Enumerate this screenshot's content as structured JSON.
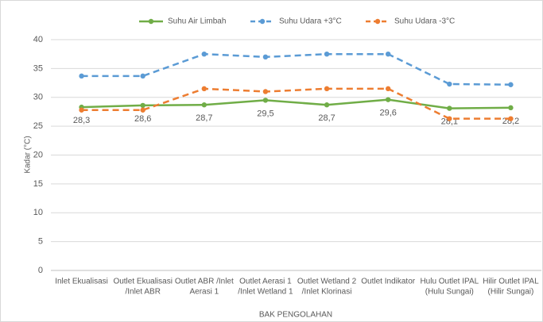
{
  "chart_data": {
    "type": "line",
    "y_label": "Kadar (°C)",
    "x_label": "BAK PENGOLAHAN",
    "categories": [
      [
        "Inlet Ekualisasi"
      ],
      [
        "Outlet Ekualisasi",
        "/Inlet ABR"
      ],
      [
        "Outlet ABR /Inlet",
        "Aerasi 1"
      ],
      [
        "Outlet Aerasi 1",
        "/Inlet Wetland 1"
      ],
      [
        "Outlet Wetland 2",
        "/Inlet Klorinasi"
      ],
      [
        "Outlet Indikator"
      ],
      [
        "Hulu Outlet IPAL",
        "(Hulu Sungai)"
      ],
      [
        "Hilir Outlet IPAL",
        "(Hilir Sungai)"
      ]
    ],
    "series": [
      {
        "name": "Suhu Air Limbah",
        "color": "#70ad47",
        "line_style": "solid",
        "values": [
          28.3,
          28.6,
          28.7,
          29.5,
          28.7,
          29.6,
          28.1,
          28.2
        ],
        "value_labels": [
          "28,3",
          "28,6",
          "28,7",
          "29,5",
          "28,7",
          "29,6",
          "28,1",
          "28,2"
        ]
      },
      {
        "name": "Suhu Udara +3°C",
        "color": "#5b9bd5",
        "line_style": "dashed",
        "values": [
          33.7,
          33.7,
          37.5,
          37.0,
          37.5,
          37.5,
          32.3,
          32.2
        ]
      },
      {
        "name": "Suhu Udara -3°C",
        "color": "#ed7d31",
        "line_style": "dashed",
        "values": [
          27.8,
          27.8,
          31.5,
          31.0,
          31.5,
          31.5,
          26.3,
          26.3
        ]
      }
    ],
    "ylim": [
      0,
      40
    ],
    "yticks": [
      0,
      5,
      10,
      15,
      20,
      25,
      30,
      35,
      40
    ],
    "grid": true,
    "legend": "top"
  }
}
